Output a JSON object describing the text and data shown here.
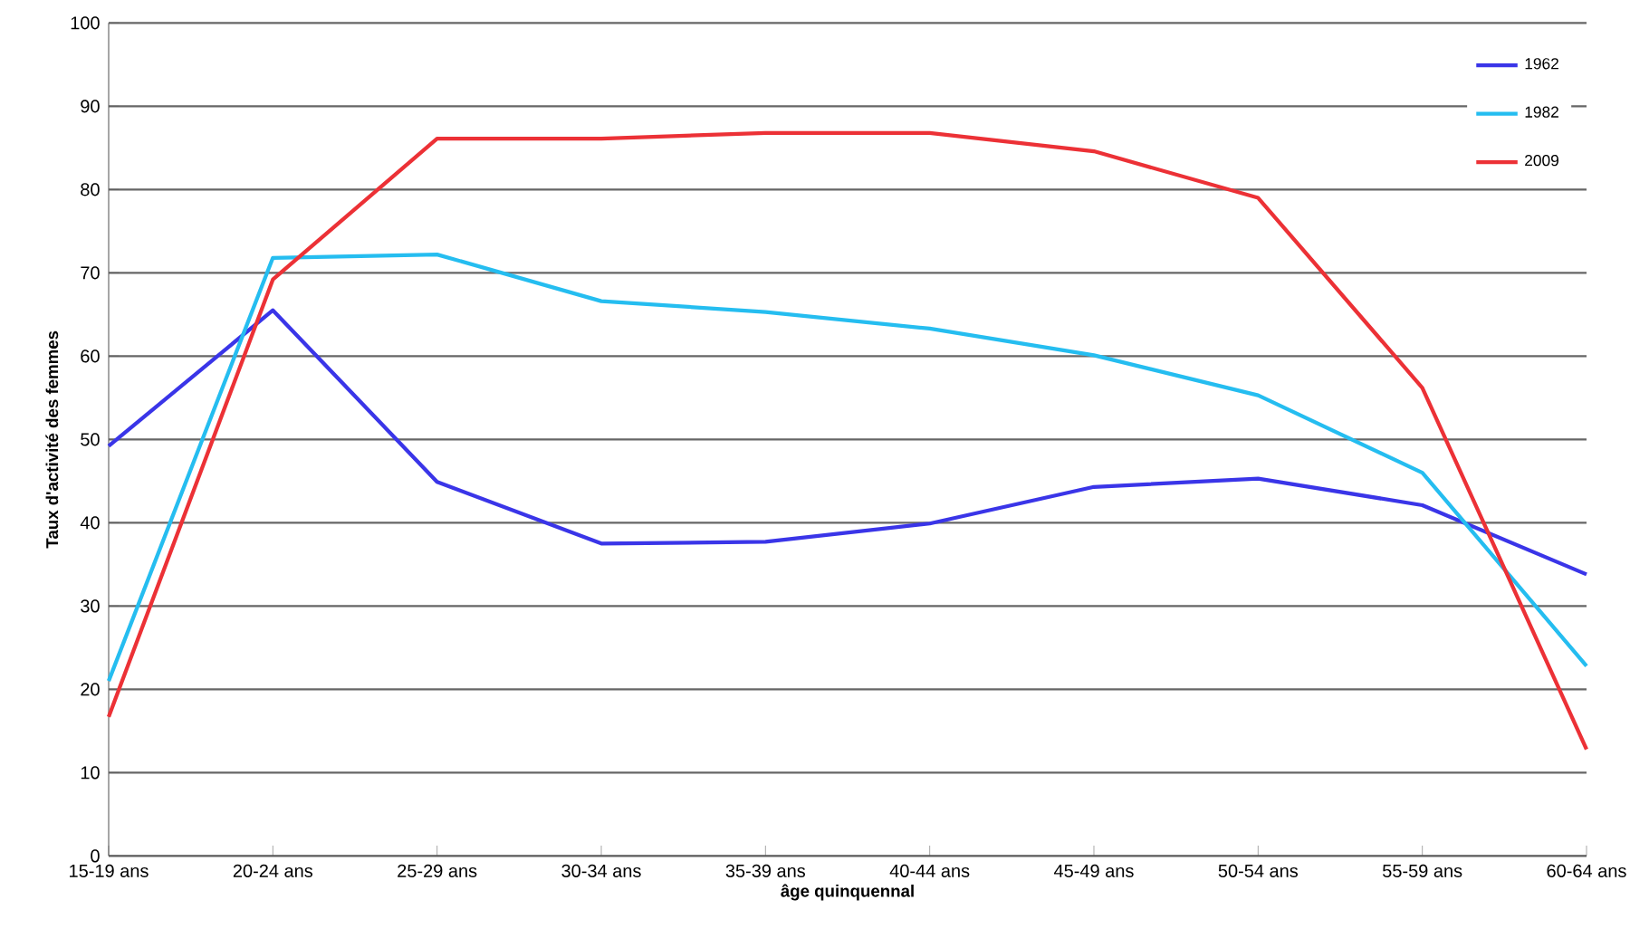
{
  "chart_data": {
    "type": "line",
    "xlabel": "âge quinquennal",
    "ylabel": "Taux d'activité des femmes",
    "categories": [
      "15-19 ans",
      "20-24 ans",
      "25-29 ans",
      "30-34 ans",
      "35-39 ans",
      "40-44 ans",
      "45-49 ans",
      "50-54 ans",
      "55-59 ans",
      "60-64 ans"
    ],
    "series": [
      {
        "name": "1962",
        "color": "#3a35e8",
        "values": [
          49.2,
          65.5,
          44.9,
          37.5,
          37.7,
          39.9,
          44.3,
          45.3,
          42.1,
          33.8
        ]
      },
      {
        "name": "1982",
        "color": "#25bdf0",
        "values": [
          21,
          71.8,
          72.2,
          66.6,
          65.3,
          63.3,
          60.1,
          55.3,
          46,
          22.8
        ]
      },
      {
        "name": "2009",
        "color": "#ec3136",
        "values": [
          16.7,
          69.2,
          86.1,
          86.1,
          86.8,
          86.8,
          84.6,
          79,
          56.2,
          12.8
        ]
      }
    ],
    "ylim": [
      0,
      100
    ],
    "yticks": [
      0,
      10,
      20,
      30,
      40,
      50,
      60,
      70,
      80,
      90,
      100
    ],
    "grid": "y",
    "legend": "top right",
    "marker": "none",
    "line_style": "solid"
  }
}
